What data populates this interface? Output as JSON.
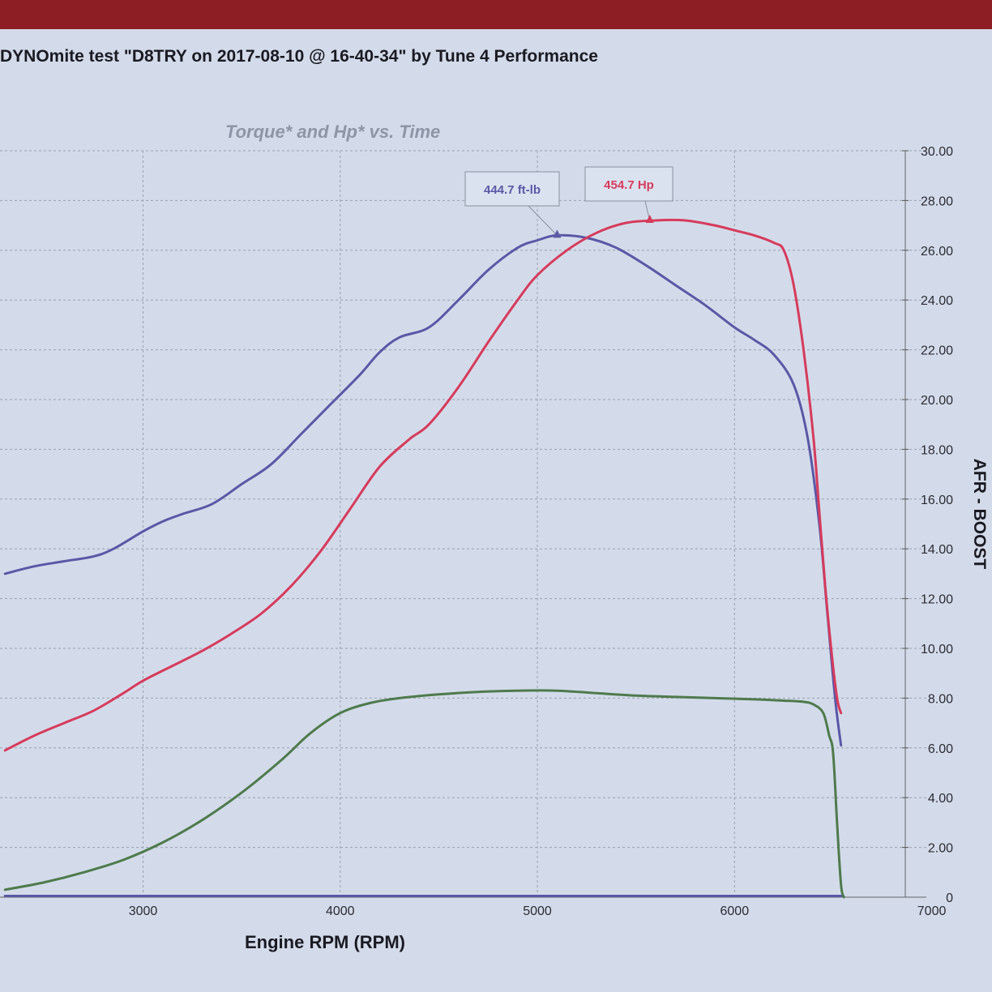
{
  "header": {
    "title": "DYNOmite test \"D8TRY on 2017-08-10 @ 16-40-34\" by Tune 4 Performance"
  },
  "colors": {
    "torque": "#5a58a6",
    "hp": "#d63b5c",
    "afr": "#4e7a4c",
    "grid": "#9aa0ae"
  },
  "chart_data": {
    "type": "line",
    "title": "",
    "subtitle": "Torque* and Hp* vs. Time",
    "xlabel": "Engine RPM (RPM)",
    "ylabel": "AFR - BOOST",
    "xlim": [
      2300,
      7000
    ],
    "ylim": [
      0,
      30
    ],
    "x_ticks": [
      3000,
      4000,
      5000,
      6000,
      7000
    ],
    "y_ticks": [
      "0",
      "2.00",
      "4.00",
      "6.00",
      "8.00",
      "10.00",
      "12.00",
      "14.00",
      "16.00",
      "18.00",
      "20.00",
      "22.00",
      "24.00",
      "26.00",
      "28.00",
      "30.00"
    ],
    "grid": true,
    "annotations": [
      {
        "text": "444.7 ft-lb",
        "series": "torque",
        "x": 5100,
        "y": 26.6
      },
      {
        "text": "454.7 Hp",
        "series": "hp",
        "x": 5570,
        "y": 27.2
      }
    ],
    "series": [
      {
        "key": "torque",
        "name": "",
        "x": [
          2300,
          2450,
          2600,
          2750,
          2850,
          3000,
          3100,
          3200,
          3350,
          3500,
          3650,
          3800,
          3950,
          4100,
          4200,
          4300,
          4450,
          4600,
          4750,
          4900,
          5000,
          5100,
          5250,
          5400,
          5550,
          5700,
          5850,
          6000,
          6100,
          6200,
          6300,
          6370,
          6430,
          6470,
          6510,
          6540
        ],
        "values": [
          13.0,
          13.3,
          13.5,
          13.7,
          14.0,
          14.7,
          15.1,
          15.4,
          15.8,
          16.6,
          17.4,
          18.6,
          19.8,
          21.0,
          21.9,
          22.5,
          22.9,
          24.0,
          25.2,
          26.1,
          26.4,
          26.6,
          26.5,
          26.1,
          25.4,
          24.6,
          23.8,
          22.9,
          22.4,
          21.8,
          20.6,
          18.5,
          15.0,
          11.5,
          8.0,
          6.1
        ]
      },
      {
        "key": "hp",
        "name": "",
        "x": [
          2300,
          2450,
          2600,
          2750,
          2900,
          3000,
          3150,
          3300,
          3450,
          3600,
          3750,
          3900,
          4050,
          4200,
          4350,
          4450,
          4600,
          4750,
          4900,
          5000,
          5150,
          5300,
          5450,
          5600,
          5750,
          5900,
          6000,
          6100,
          6200,
          6250,
          6300,
          6350,
          6400,
          6430,
          6460,
          6490,
          6520,
          6540
        ],
        "values": [
          5.9,
          6.5,
          7.0,
          7.5,
          8.2,
          8.7,
          9.3,
          9.9,
          10.6,
          11.4,
          12.5,
          13.9,
          15.6,
          17.3,
          18.4,
          19.0,
          20.5,
          22.3,
          24.0,
          25.0,
          26.0,
          26.7,
          27.1,
          27.2,
          27.2,
          27.0,
          26.8,
          26.6,
          26.3,
          26.0,
          24.6,
          22.0,
          18.5,
          15.5,
          12.5,
          10.0,
          8.0,
          7.4
        ]
      },
      {
        "key": "afr",
        "name": "",
        "x": [
          2300,
          2500,
          2700,
          2900,
          3100,
          3300,
          3500,
          3700,
          3850,
          4000,
          4150,
          4300,
          4500,
          4700,
          4900,
          5100,
          5300,
          5500,
          5700,
          5900,
          6100,
          6250,
          6350,
          6400,
          6450,
          6480,
          6500,
          6520,
          6540,
          6555
        ],
        "values": [
          0.3,
          0.6,
          1.0,
          1.5,
          2.2,
          3.1,
          4.2,
          5.5,
          6.6,
          7.4,
          7.8,
          8.0,
          8.15,
          8.25,
          8.3,
          8.3,
          8.2,
          8.1,
          8.05,
          8.0,
          7.95,
          7.9,
          7.85,
          7.75,
          7.4,
          6.5,
          5.8,
          3.0,
          0.5,
          0.0
        ]
      },
      {
        "key": "baseline",
        "name": "",
        "x": [
          2300,
          6540
        ],
        "values": [
          0.05,
          0.05
        ]
      }
    ]
  }
}
